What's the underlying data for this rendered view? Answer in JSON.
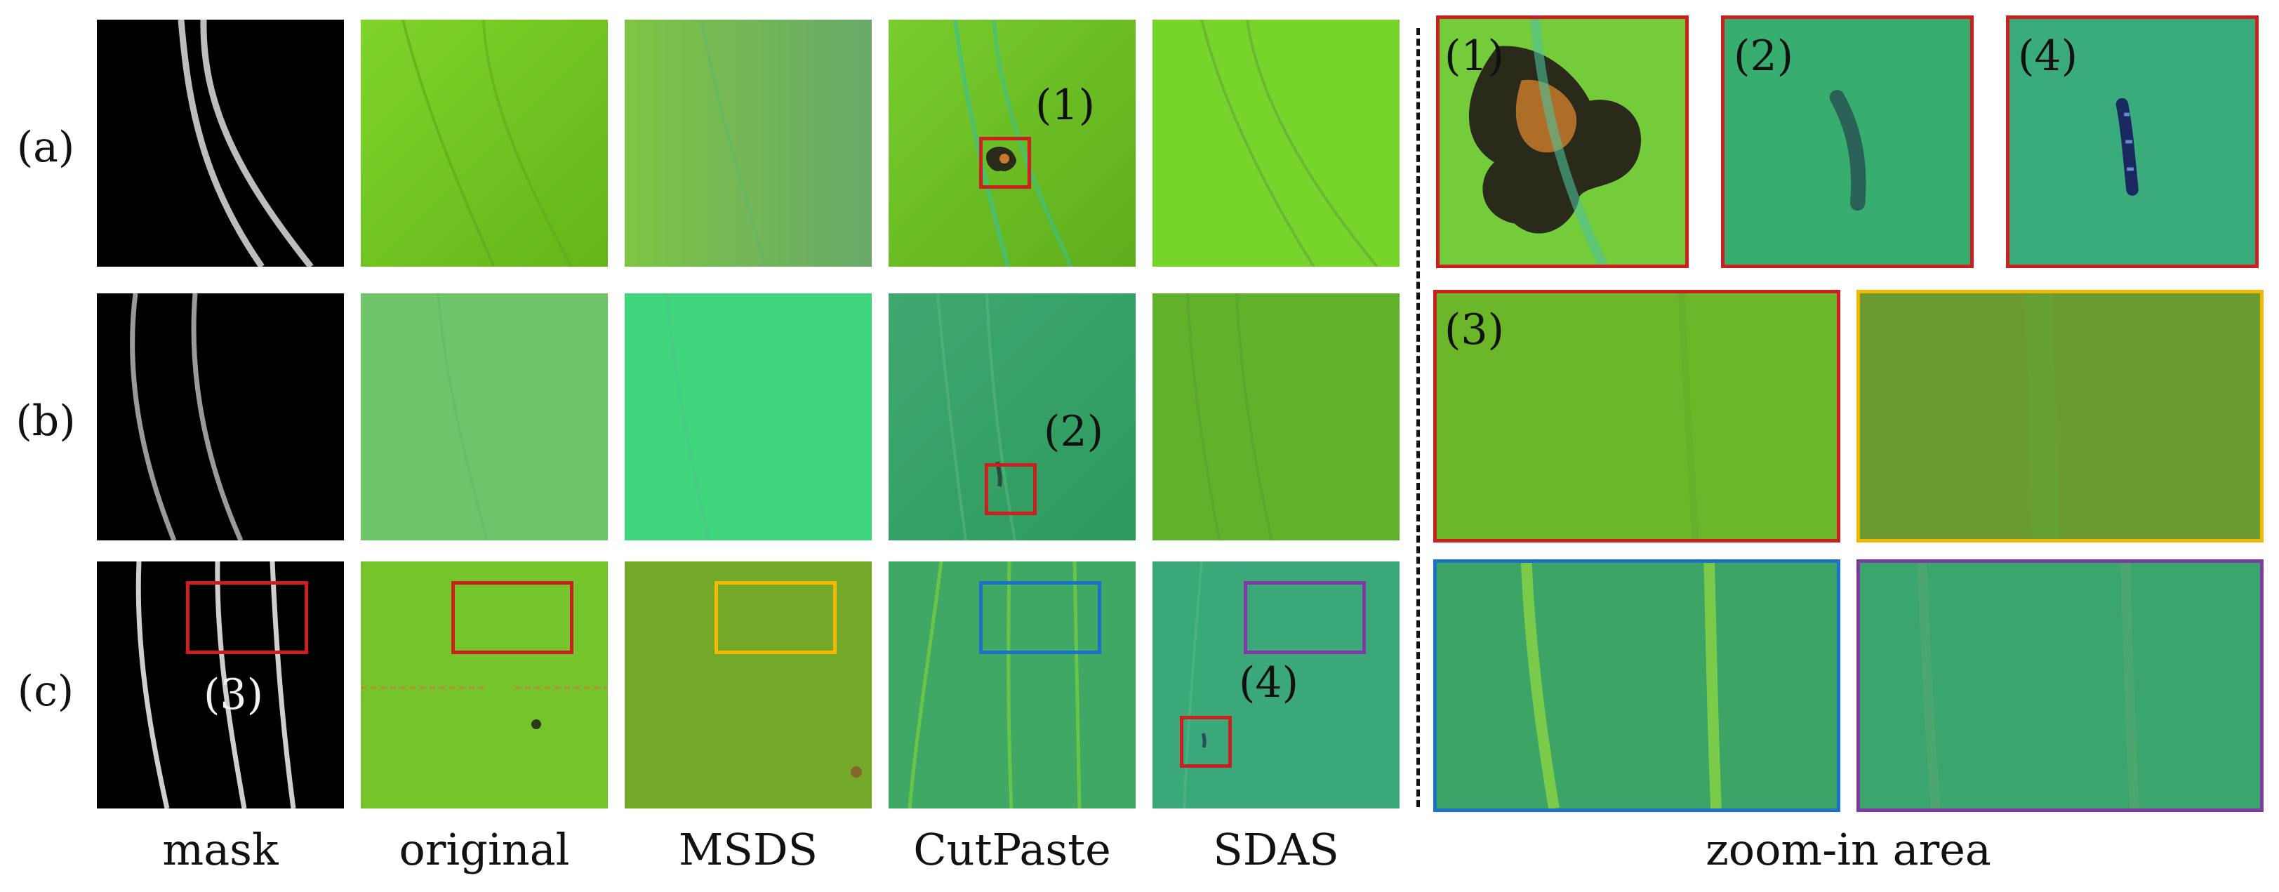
{
  "row_labels": [
    "(a)",
    "(b)",
    "(c)"
  ],
  "column_labels": [
    "mask",
    "original",
    "MSDS",
    "CutPaste",
    "SDAS",
    "zoom-in area"
  ],
  "region_tags": [
    "(1)",
    "(2)",
    "(3)",
    "(4)"
  ],
  "colors": {
    "mask_bg": "#000000",
    "red": "#cc1f1f",
    "yellow": "#f5b800",
    "blue": "#1a72c8",
    "purple": "#7d3aa0"
  }
}
